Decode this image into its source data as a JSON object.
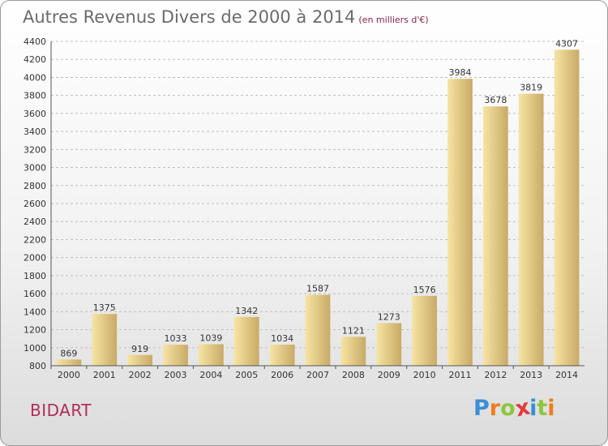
{
  "title": "Autres Revenus Divers de 2000 à 2014",
  "subtitle": "(en milliers d'€)",
  "commune": "BIDART",
  "logo": {
    "letters": [
      "P",
      "r",
      "o",
      "x",
      "i",
      "t",
      "i"
    ],
    "colors": [
      "#3a8fd6",
      "#ef7d1a",
      "#8cc63f",
      "#e03a3a",
      "#3a8fd6",
      "#8cc63f",
      "#ef7d1a"
    ]
  },
  "colors": {
    "bar_light": "#f7e4a3",
    "bar_dark": "#c8aa66",
    "grid": "#bfbfbf",
    "title": "#6b6b6b",
    "commune": "#b02c5a"
  },
  "chart_data": {
    "type": "bar",
    "categories": [
      "2000",
      "2001",
      "2002",
      "2003",
      "2004",
      "2005",
      "2006",
      "2007",
      "2008",
      "2009",
      "2010",
      "2011",
      "2012",
      "2013",
      "2014"
    ],
    "values": [
      869,
      1375,
      919,
      1033,
      1039,
      1342,
      1034,
      1587,
      1121,
      1273,
      1576,
      3984,
      3678,
      3819,
      4307
    ],
    "title": "Autres Revenus Divers de 2000 à 2014",
    "xlabel": "",
    "ylabel": "",
    "ylim": [
      800,
      4400
    ],
    "yticks": [
      800,
      1000,
      1200,
      1400,
      1600,
      1800,
      2000,
      2200,
      2400,
      2600,
      2800,
      3000,
      3200,
      3400,
      3600,
      3800,
      4000,
      4200,
      4400
    ],
    "grid": true,
    "legend": "none"
  }
}
